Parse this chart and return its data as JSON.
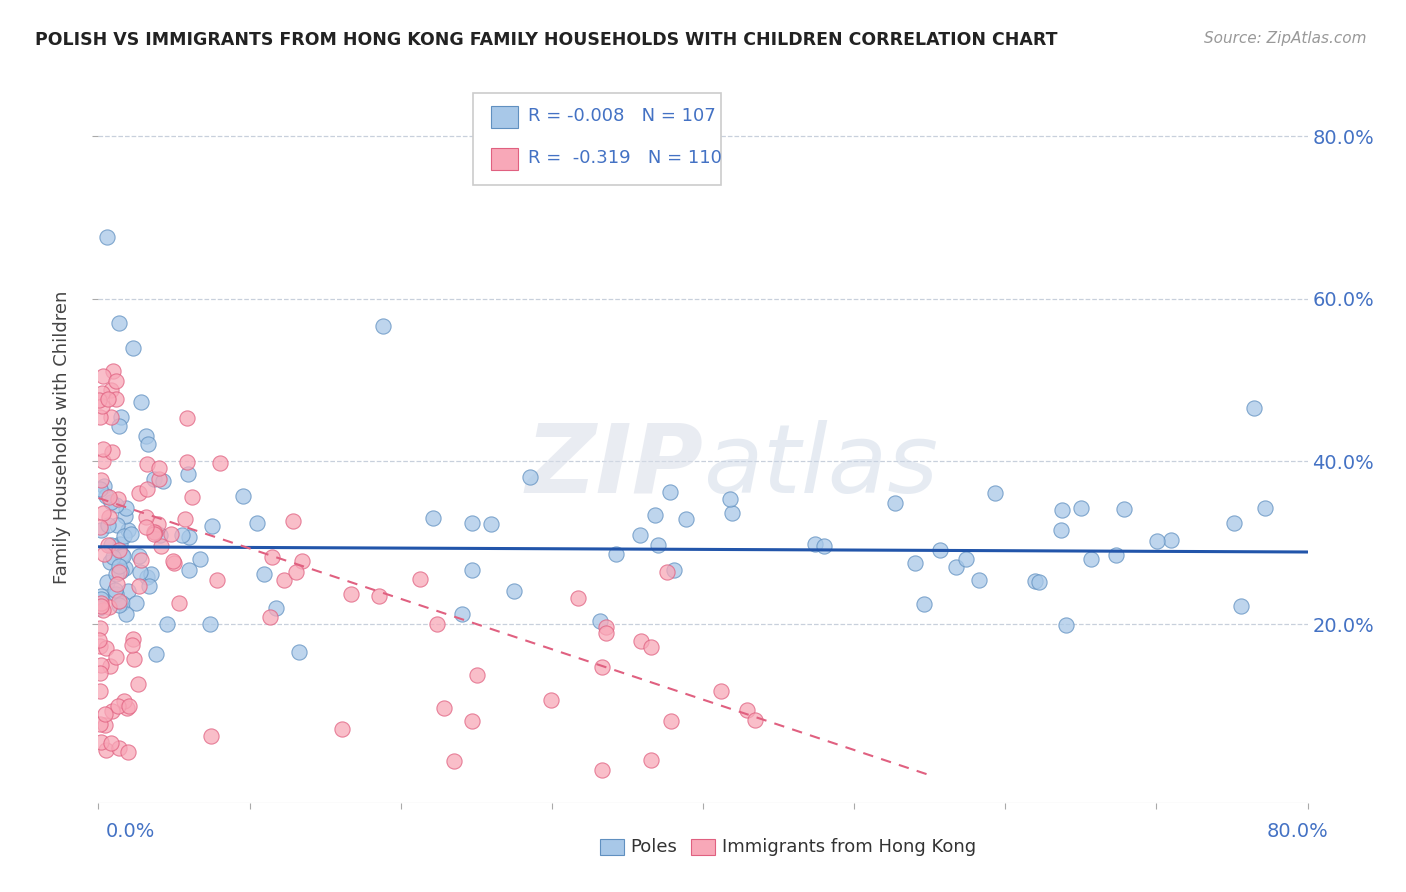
{
  "title": "POLISH VS IMMIGRANTS FROM HONG KONG FAMILY HOUSEHOLDS WITH CHILDREN CORRELATION CHART",
  "source": "Source: ZipAtlas.com",
  "ylabel": "Family Households with Children",
  "ytick_values": [
    0.2,
    0.4,
    0.6,
    0.8
  ],
  "xrange": [
    0.0,
    0.8
  ],
  "yrange": [
    -0.02,
    0.88
  ],
  "legend_poles_R": "-0.008",
  "legend_poles_N": "107",
  "legend_hk_R": "-0.319",
  "legend_hk_N": "110",
  "poles_color": "#a8c8e8",
  "hk_color": "#f8a8b8",
  "poles_edge_color": "#6090c0",
  "hk_edge_color": "#e06080",
  "poles_line_color": "#2255aa",
  "hk_line_color": "#e06080",
  "background_color": "#ffffff",
  "watermark": "ZIPatlas",
  "grid_color": "#c8d0dc",
  "poles_trend_y0": 0.295,
  "poles_trend_slope": -0.008,
  "hk_trend_y0": 0.355,
  "hk_trend_slope": -0.62
}
